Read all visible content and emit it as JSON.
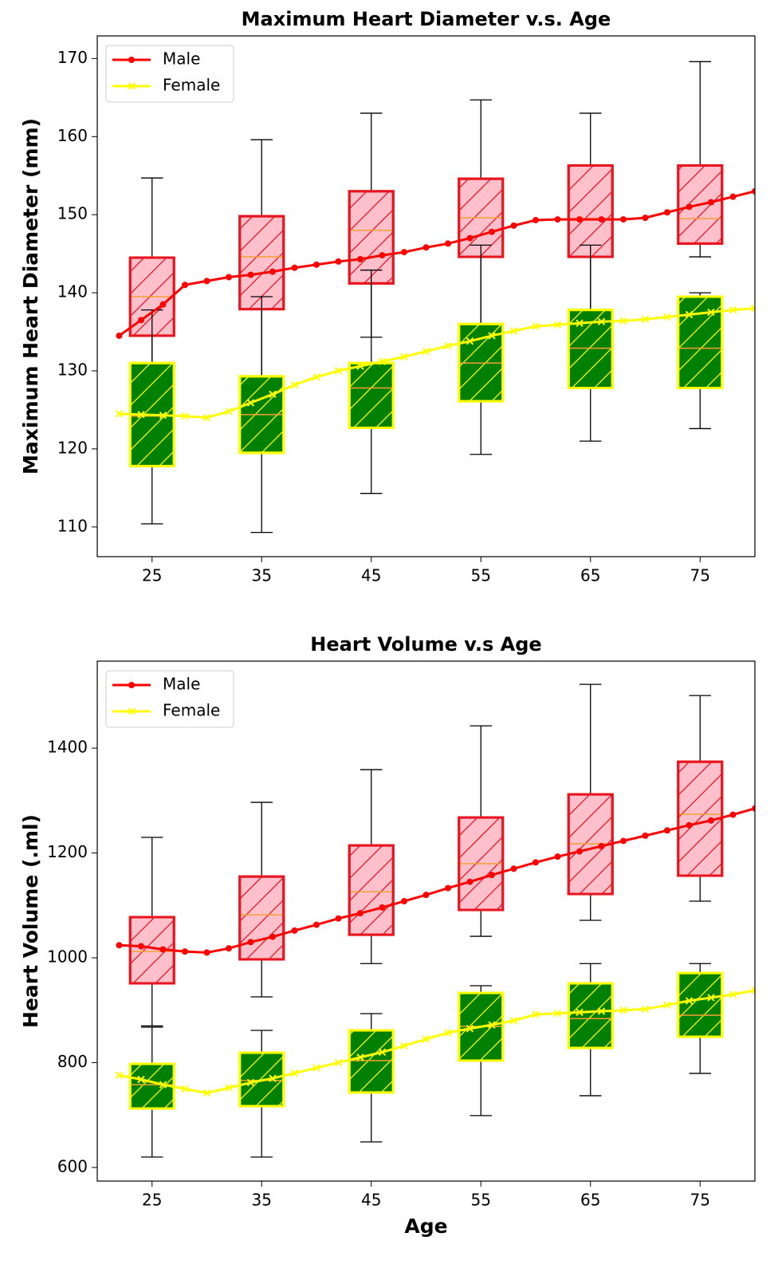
{
  "chart_data": [
    {
      "type": "box",
      "title": "Maximum Heart Diameter v.s. Age",
      "ylabel": "Maximum Heart Diameter (mm)",
      "xlim": [
        20,
        80
      ],
      "ylim": [
        106.2,
        172.9
      ],
      "xticks": [
        25,
        35,
        45,
        55,
        65,
        75
      ],
      "yticks": [
        110,
        120,
        130,
        140,
        150,
        160,
        170
      ],
      "legend": "upper left",
      "median_color": "#f5a033",
      "x": [
        25,
        35,
        45,
        55,
        65,
        75
      ],
      "line_x": [
        22,
        24,
        26,
        28,
        30,
        32,
        34,
        36,
        38,
        40,
        42,
        44,
        46,
        48,
        50,
        52,
        54,
        56,
        58,
        60,
        62,
        64,
        66,
        68,
        70,
        72,
        74,
        76,
        78,
        80
      ],
      "series": [
        {
          "name": "Male",
          "color": "#ff0000",
          "marker": "circle",
          "box_fill": "#ffc0cb",
          "box_edge": "#e8141e",
          "boxes": [
            {
              "whislo": 124,
              "q1": 134.5,
              "med": 139.5,
              "q3": 144.5,
              "whishi": 154.7
            },
            {
              "whislo": 126,
              "q1": 137.9,
              "med": 144.6,
              "q3": 149.8,
              "whishi": 159.6
            },
            {
              "whislo": 134.3,
              "q1": 141.2,
              "med": 148,
              "q3": 153,
              "whishi": 163
            },
            {
              "whislo": 131,
              "q1": 144.6,
              "med": 149.6,
              "q3": 154.6,
              "whishi": 164.7
            },
            {
              "whislo": 133,
              "q1": 144.6,
              "med": 149.5,
              "q3": 156.3,
              "whishi": 163
            },
            {
              "whislo": 144.6,
              "q1": 146.3,
              "med": 149.5,
              "q3": 156.3,
              "whishi": 169.6
            }
          ],
          "values": [
            134.5,
            136.5,
            138.5,
            141,
            141.5,
            142,
            142.3,
            142.7,
            143.2,
            143.6,
            144,
            144.3,
            144.8,
            145.2,
            145.8,
            146.3,
            147,
            147.8,
            148.6,
            149.3,
            149.4,
            149.4,
            149.4,
            149.4,
            149.6,
            150.3,
            151,
            151.6,
            152.3,
            153
          ]
        },
        {
          "name": "Female",
          "color": "#ffff00",
          "marker": "x",
          "box_fill": "#008000",
          "box_edge": "#ffff00",
          "boxes": [
            {
              "whislo": 110.4,
              "q1": 117.8,
              "med": 124.2,
              "q3": 131,
              "whishi": 137.8
            },
            {
              "whislo": 109.3,
              "q1": 119.5,
              "med": 124.4,
              "q3": 129.3,
              "whishi": 139.5
            },
            {
              "whislo": 114.3,
              "q1": 122.7,
              "med": 127.8,
              "q3": 131,
              "whishi": 142.9
            },
            {
              "whislo": 119.3,
              "q1": 126.1,
              "med": 131,
              "q3": 136,
              "whishi": 146.1
            },
            {
              "whislo": 121,
              "q1": 127.8,
              "med": 132.9,
              "q3": 137.8,
              "whishi": 146.1
            },
            {
              "whislo": 122.6,
              "q1": 127.8,
              "med": 132.9,
              "q3": 139.5,
              "whishi": 140
            }
          ],
          "values": [
            124.5,
            124.4,
            124.3,
            124.2,
            124,
            124.8,
            125.9,
            127,
            128.2,
            129.2,
            130,
            130.6,
            131.2,
            131.8,
            132.5,
            133.2,
            133.8,
            134.5,
            135.1,
            135.7,
            135.9,
            136.1,
            136.3,
            136.4,
            136.6,
            136.9,
            137.2,
            137.5,
            137.8,
            138
          ]
        }
      ]
    },
    {
      "type": "box",
      "title": "Heart Volume v.s Age",
      "ylabel": "Heart Volume (.ml)",
      "xlabel": "Age",
      "xlim": [
        20,
        80
      ],
      "ylim": [
        574,
        1566
      ],
      "xticks": [
        25,
        35,
        45,
        55,
        65,
        75
      ],
      "yticks": [
        600,
        800,
        1000,
        1200,
        1400
      ],
      "legend": "upper left",
      "median_color": "#f5a033",
      "x": [
        25,
        35,
        45,
        55,
        65,
        75
      ],
      "line_x": [
        22,
        24,
        26,
        28,
        30,
        32,
        34,
        36,
        38,
        40,
        42,
        44,
        46,
        48,
        50,
        52,
        54,
        56,
        58,
        60,
        62,
        64,
        66,
        68,
        70,
        72,
        74,
        76,
        78,
        80
      ],
      "series": [
        {
          "name": "Male",
          "color": "#ff0000",
          "marker": "circle",
          "box_fill": "#ffc0cb",
          "box_edge": "#e8141e",
          "boxes": [
            {
              "whislo": 870,
              "q1": 951.3,
              "med": 1012,
              "q3": 1077.6,
              "whishi": 1229.7
            },
            {
              "whislo": 925.5,
              "q1": 997,
              "med": 1082,
              "q3": 1155,
              "whishi": 1296.6
            },
            {
              "whislo": 989,
              "q1": 1044,
              "med": 1126,
              "q3": 1214.4,
              "whishi": 1359
            },
            {
              "whislo": 1041,
              "q1": 1091.3,
              "med": 1179.5,
              "q3": 1267.7,
              "whishi": 1442.6
            },
            {
              "whislo": 1071.5,
              "q1": 1121.7,
              "med": 1217.5,
              "q3": 1311.8,
              "whishi": 1521.7
            },
            {
              "whislo": 1108,
              "q1": 1156.7,
              "med": 1273.8,
              "q3": 1374,
              "whishi": 1500.4
            }
          ],
          "values": [
            1024,
            1022,
            1016,
            1012,
            1010,
            1018,
            1030,
            1040,
            1052,
            1063,
            1075,
            1085,
            1096,
            1108,
            1120,
            1133,
            1145,
            1158,
            1170,
            1182,
            1193,
            1203,
            1213,
            1223,
            1233,
            1243,
            1253,
            1262,
            1273,
            1285
          ]
        },
        {
          "name": "Female",
          "color": "#ffff00",
          "marker": "x",
          "box_fill": "#008000",
          "box_edge": "#ffff00",
          "boxes": [
            {
              "whislo": 619.8,
              "q1": 712.5,
              "med": 758,
              "q3": 797.7,
              "whishi": 867.7
            },
            {
              "whislo": 619.8,
              "q1": 717,
              "med": 766,
              "q3": 819,
              "whishi": 861.6
            },
            {
              "whislo": 648.7,
              "q1": 743,
              "med": 804,
              "q3": 861.6,
              "whishi": 893.5
            },
            {
              "whislo": 698.9,
              "q1": 803.8,
              "med": 869,
              "q3": 933,
              "whishi": 946.8
            },
            {
              "whislo": 736.9,
              "q1": 828,
              "med": 884,
              "q3": 951.3,
              "whishi": 989
            },
            {
              "whislo": 779.5,
              "q1": 849.4,
              "med": 890.5,
              "q3": 971,
              "whishi": 989
            }
          ],
          "values": [
            776,
            768,
            758,
            750,
            742,
            752,
            762,
            770,
            780,
            790,
            800,
            810,
            820,
            832,
            845,
            857,
            865,
            872,
            880,
            892,
            894,
            896,
            898,
            900,
            902,
            910,
            918,
            924,
            930,
            938
          ]
        }
      ]
    }
  ]
}
